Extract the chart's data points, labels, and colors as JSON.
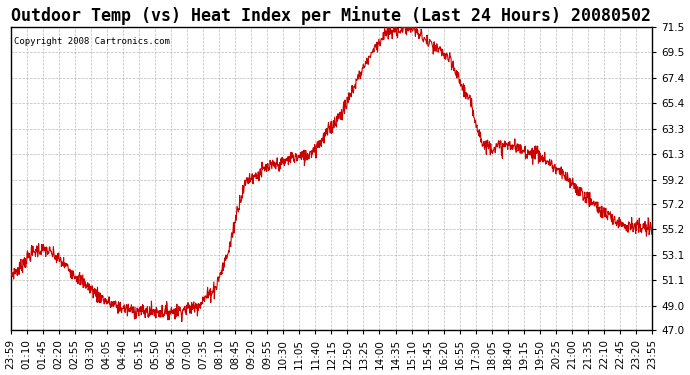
{
  "title": "Outdoor Temp (vs) Heat Index per Minute (Last 24 Hours) 20080502",
  "copyright": "Copyright 2008 Cartronics.com",
  "line_color": "#cc0000",
  "bg_color": "#ffffff",
  "grid_color": "#aaaaaa",
  "ylim": [
    47.0,
    71.5
  ],
  "yticks": [
    47.0,
    49.0,
    51.1,
    53.1,
    55.2,
    57.2,
    59.2,
    61.3,
    63.3,
    65.4,
    67.4,
    69.5,
    71.5
  ],
  "xtick_labels": [
    "23:59",
    "01:10",
    "01:45",
    "02:20",
    "02:55",
    "03:30",
    "04:05",
    "04:40",
    "05:15",
    "05:50",
    "06:25",
    "07:00",
    "07:35",
    "08:10",
    "08:45",
    "09:20",
    "09:55",
    "10:30",
    "11:05",
    "11:40",
    "12:15",
    "12:50",
    "13:25",
    "14:00",
    "14:35",
    "15:10",
    "15:45",
    "16:20",
    "16:55",
    "17:30",
    "18:05",
    "18:40",
    "19:15",
    "19:50",
    "20:25",
    "21:00",
    "21:35",
    "22:10",
    "22:45",
    "23:20",
    "23:55"
  ],
  "waypoints_x": [
    0,
    20,
    40,
    60,
    80,
    100,
    130,
    160,
    190,
    220,
    260,
    300,
    340,
    380,
    420,
    460,
    490,
    510,
    530,
    550,
    570,
    590,
    610,
    630,
    660,
    690,
    720,
    750,
    780,
    810,
    840,
    870,
    900,
    930,
    950,
    970,
    990,
    1010,
    1030,
    1060,
    1090,
    1120,
    1150,
    1180,
    1210,
    1240,
    1270,
    1300,
    1330,
    1360,
    1390,
    1420,
    1439
  ],
  "waypoints_y": [
    51.5,
    52.0,
    53.0,
    53.5,
    53.5,
    53.0,
    52.0,
    51.0,
    50.0,
    49.2,
    48.7,
    48.5,
    48.5,
    48.6,
    49.0,
    50.5,
    53.5,
    57.0,
    59.2,
    59.5,
    60.0,
    60.3,
    60.5,
    61.0,
    61.0,
    62.0,
    63.5,
    65.0,
    67.5,
    69.5,
    71.0,
    71.3,
    71.5,
    70.5,
    69.8,
    69.5,
    68.5,
    67.0,
    65.5,
    62.0,
    61.8,
    62.0,
    61.5,
    61.3,
    60.5,
    59.5,
    58.5,
    57.5,
    56.5,
    55.8,
    55.5,
    55.2,
    55.2
  ],
  "title_fontsize": 12,
  "tick_fontsize": 7.5,
  "copyright_fontsize": 6.5
}
